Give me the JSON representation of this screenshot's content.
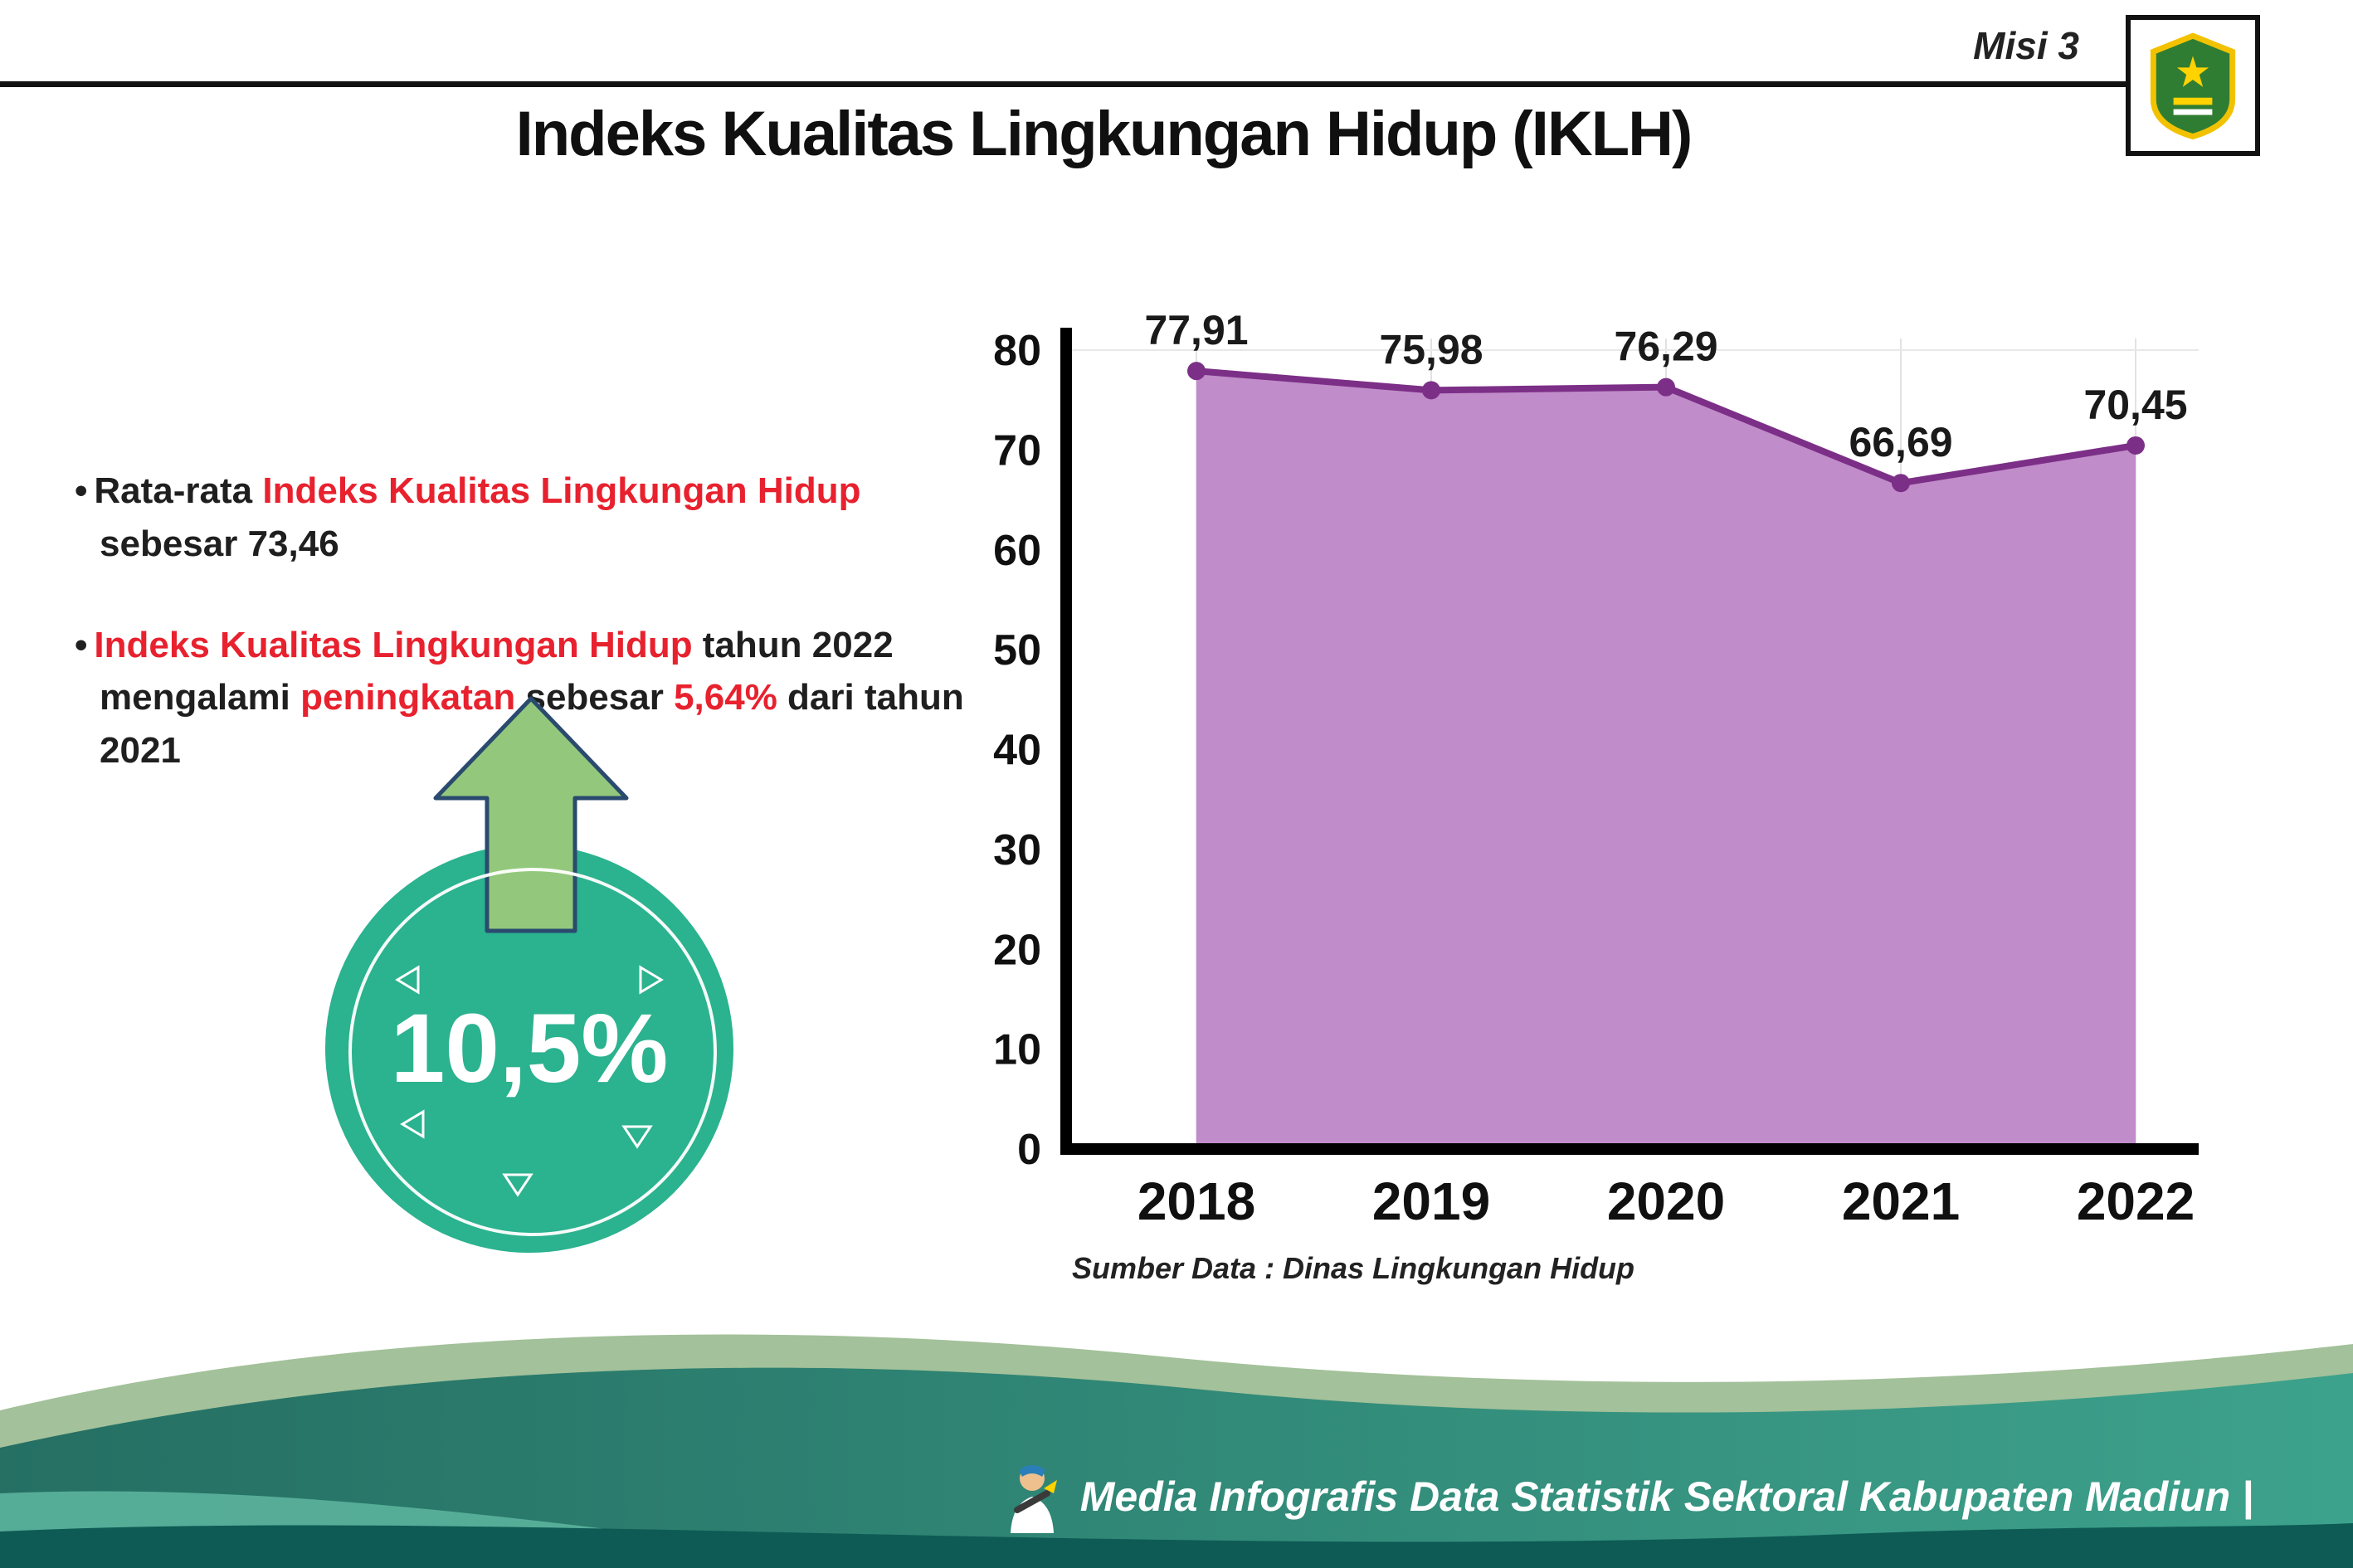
{
  "header": {
    "misi_label": "Misi 3"
  },
  "title": "Indeks Kualitas Lingkungan Hidup (IKLH)",
  "bullets": {
    "b1_prefix": "Rata-rata ",
    "b1_highlight": "Indeks Kualitas Lingkungan Hidup",
    "b1_suffix": " sebesar 73,46",
    "b2_h1": "Indeks Kualitas Lingkungan Hidup",
    "b2_t1": " tahun 2022 mengalami ",
    "b2_h2": "peningkatan",
    "b2_t2": " sebesar ",
    "b2_h3": "5,64%",
    "b2_t3": " dari tahun 2021"
  },
  "badge": {
    "value": "10,5%"
  },
  "chart_data": {
    "type": "area",
    "categories": [
      "2018",
      "2019",
      "2020",
      "2021",
      "2022"
    ],
    "values": [
      77.91,
      75.98,
      76.29,
      66.69,
      70.45
    ],
    "value_labels": [
      "77,91",
      "75,98",
      "76,29",
      "66,69",
      "70,45"
    ],
    "title": "",
    "xlabel": "",
    "ylabel": "",
    "ylim": [
      0,
      80
    ],
    "ytick_step": 10,
    "grid": "light vertical gridlines at each year, light horizontal line at top value",
    "legend": "none",
    "source": "Sumber Data : Dinas Lingkungan Hidup",
    "colors": {
      "line": "#7c2f87",
      "fill": "#c08cc9",
      "point": "#7c2f87"
    }
  },
  "footer": {
    "text": "Media Infografis Data Statistik Sektoral Kabupaten Madiun |"
  },
  "colors": {
    "highlight_red": "#e8212e",
    "circle_teal": "#2bb28f",
    "arrow_green": "#93c87c",
    "footer_sage": "#a3c19a",
    "footer_dark": "#0e5b55"
  }
}
